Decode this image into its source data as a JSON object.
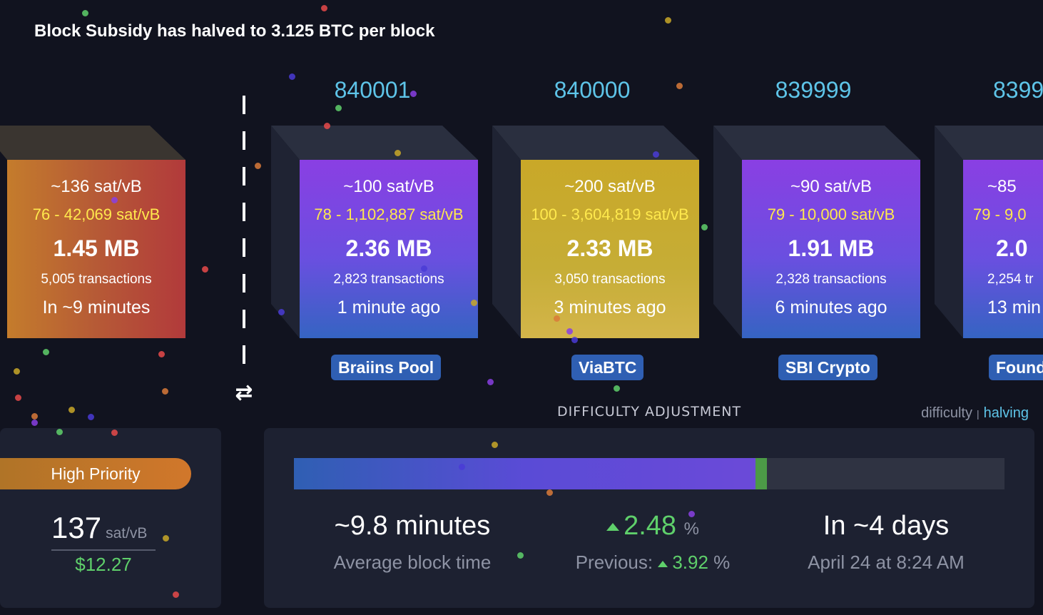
{
  "banner": "Block Subsidy has halved to 3.125 BTC per block",
  "projected_block": {
    "fee_median": "~136 sat/vB",
    "fee_range": "76 - 42,069 sat/vB",
    "size": "1.45 MB",
    "tx_count": "5,005 transactions",
    "eta": "In ~9 minutes"
  },
  "blocks": [
    {
      "height": "840001",
      "fee_median": "~100 sat/vB",
      "fee_range": "78 - 1,102,887 sat/vB",
      "size": "2.36 MB",
      "tx_count": "2,823 transactions",
      "age": "1 minute ago",
      "pool": "Braiins Pool"
    },
    {
      "height": "840000",
      "fee_median": "~200 sat/vB",
      "fee_range": "100 - 3,604,819 sat/vB",
      "size": "2.33 MB",
      "tx_count": "3,050 transactions",
      "age": "3 minutes ago",
      "pool": "ViaBTC"
    },
    {
      "height": "839999",
      "fee_median": "~90 sat/vB",
      "fee_range": "79 - 10,000 sat/vB",
      "size": "1.91 MB",
      "tx_count": "2,328 transactions",
      "age": "6 minutes ago",
      "pool": "SBI Crypto"
    },
    {
      "height": "8399",
      "fee_median": "~85",
      "fee_range": "79 - 9,0",
      "size": "2.0",
      "tx_count": "2,254 tr",
      "age": "13 min",
      "pool": "Found"
    }
  ],
  "fees": {
    "label": "High Priority",
    "value": "137",
    "unit": "sat/vB",
    "usd": "$12.27"
  },
  "difficulty": {
    "title": "DIFFICULTY ADJUSTMENT",
    "tab_difficulty": "difficulty",
    "tab_separator": "|",
    "tab_halving": "halving",
    "progress_fraction": 0.65,
    "avg_block_time": "~9.8 minutes",
    "avg_block_time_label": "Average block time",
    "change": "2.48",
    "change_unit": "%",
    "previous_label": "Previous:",
    "previous_change": "3.92",
    "previous_unit": "%",
    "eta": "In ~4 days",
    "eta_date": "April 24 at 8:24 AM"
  },
  "colors": {
    "background": "#11131f",
    "panel": "#1d2131",
    "accent_cyan": "#5ec4e8",
    "fee_range_yellow": "#ffe94d",
    "positive_green": "#5fd06b",
    "pool_badge": "#2f5fb3"
  },
  "icons": {
    "swap": "swap-arrows-icon",
    "change_up": "triangle-up-icon"
  }
}
